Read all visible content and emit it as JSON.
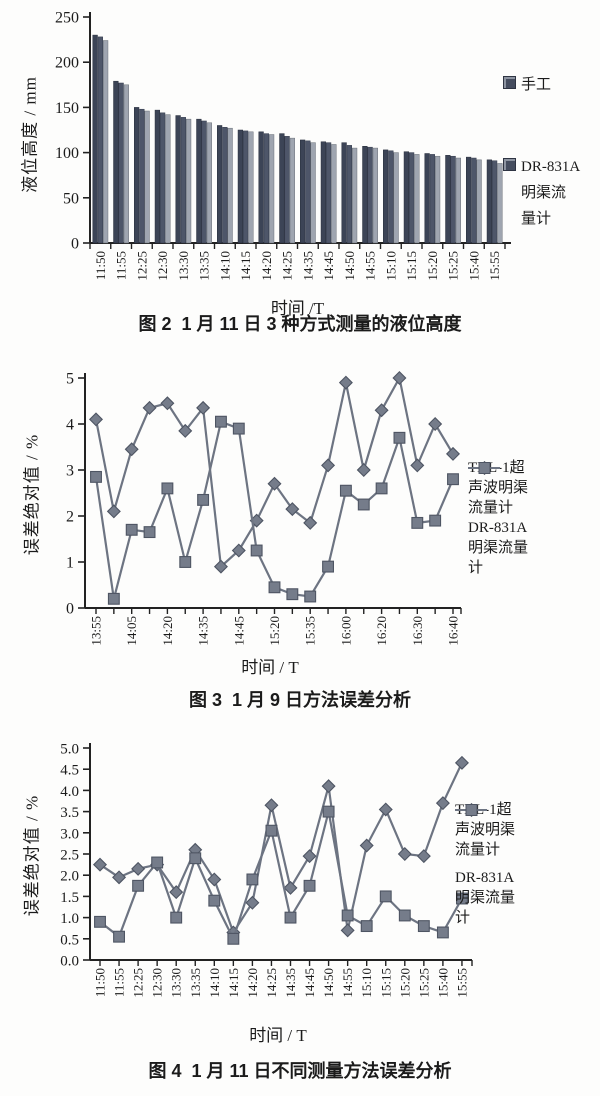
{
  "colors": {
    "axis": "#222222",
    "text": "#1b1b1b",
    "bar_series": [
      "#3c4456",
      "#4e5669",
      "#9fa5b0"
    ],
    "bar_stroke": [
      "#262c3a",
      "#343b4c",
      "#6a7078"
    ],
    "line": "#6d7482",
    "marker_fill": "#757c8a",
    "marker_stroke": "#4e5563"
  },
  "chart_data": [
    {
      "id": "fig2",
      "type": "bar",
      "caption": "图 2  1 月 11 日 3 种方式测量的液位高度",
      "xlabel": "时间 /T",
      "ylabel": "液位高度 / mm",
      "ylim": [
        0,
        250
      ],
      "ytick_values": [
        0,
        50,
        100,
        150,
        200,
        250
      ],
      "ytick_labels": [
        "0",
        "50",
        "100",
        "150",
        "200",
        "250"
      ],
      "grid": false,
      "legend_position": "right",
      "categories": [
        "11:50",
        "11:55",
        "12:25",
        "12:30",
        "13:30",
        "13:35",
        "14:10",
        "14:15",
        "14:20",
        "14:25",
        "14:35",
        "14:45",
        "14:50",
        "14:55",
        "15:10",
        "15:15",
        "15:20",
        "15:25",
        "15:40",
        "15:55"
      ],
      "series": [
        {
          "name": "手工",
          "values": [
            230,
            179,
            150,
            147,
            141,
            137,
            130,
            125,
            123,
            121,
            114,
            112,
            111,
            107,
            103,
            101,
            99,
            97,
            95,
            92
          ]
        },
        {
          "name": "",
          "values": [
            228,
            177,
            148,
            144,
            139,
            135,
            128,
            124,
            121,
            118,
            113,
            111,
            108,
            106,
            102,
            100,
            98,
            96,
            94,
            91
          ]
        },
        {
          "name": "DR-831A明渠流量计",
          "values": [
            224,
            175,
            146,
            142,
            137,
            133,
            127,
            123,
            120,
            116,
            111,
            109,
            105,
            105,
            100,
            98,
            96,
            94,
            92,
            88
          ]
        }
      ],
      "legend": [
        {
          "label": "手工",
          "marker": "square"
        },
        {
          "label": "DR-831A\n明渠流\n量计",
          "marker": "square"
        }
      ]
    },
    {
      "id": "fig3",
      "type": "line",
      "caption": "图 3  1 月 9 日方法误差分析",
      "xlabel": "时间 / T",
      "ylabel": "误差绝对值 / %",
      "ylim": [
        0,
        5
      ],
      "ytick_values": [
        0,
        1,
        2,
        3,
        4,
        5
      ],
      "ytick_labels": [
        "0",
        "1",
        "2",
        "3",
        "4",
        "5"
      ],
      "grid": false,
      "legend_position": "right",
      "x_labels": [
        "13:55",
        "",
        "14:05",
        "",
        "14:20",
        "",
        "14:35",
        "",
        "14:45",
        "",
        "15:20",
        "",
        "15:35",
        "",
        "16:00",
        "",
        "16:20",
        "",
        "16:30",
        "",
        "16:40"
      ],
      "series": [
        {
          "name": "TKL-1超声波明渠流量计",
          "marker": "diamond",
          "values": [
            4.1,
            2.1,
            3.45,
            4.35,
            4.45,
            3.85,
            4.35,
            0.9,
            1.25,
            1.9,
            2.7,
            2.15,
            1.85,
            3.1,
            4.9,
            3.0,
            4.3,
            5.0,
            3.1,
            4.0,
            3.35
          ]
        },
        {
          "name": "DR-831A明渠流量计",
          "marker": "square",
          "values": [
            2.85,
            0.2,
            1.7,
            1.65,
            2.6,
            1.0,
            2.35,
            4.05,
            3.9,
            1.25,
            0.45,
            0.3,
            0.25,
            0.9,
            2.55,
            2.25,
            2.6,
            3.7,
            1.85,
            1.9,
            2.8
          ]
        }
      ],
      "legend": [
        {
          "label": "TKL-1超\n声波明渠\n流量计",
          "marker": "diamond"
        },
        {
          "label": "DR-831A\n明渠流量\n计",
          "marker": "square"
        }
      ]
    },
    {
      "id": "fig4",
      "type": "line",
      "caption": "图 4  1 月 11 日不同测量方法误差分析",
      "xlabel": "时间 / T",
      "ylabel": "误差绝对值 / %",
      "ylim": [
        0,
        5
      ],
      "ytick_values": [
        0,
        0.5,
        1,
        1.5,
        2,
        2.5,
        3,
        3.5,
        4,
        4.5,
        5
      ],
      "ytick_labels": [
        "0.0",
        "0.5",
        "1.0",
        "1.5",
        "2.0",
        "2.5",
        "3.0",
        "3.5",
        "4.0",
        "4.5",
        "5.0"
      ],
      "grid": false,
      "legend_position": "right",
      "x_labels": [
        "11:50",
        "11:55",
        "12:25",
        "12:30",
        "13:30",
        "13:35",
        "14:10",
        "14:15",
        "14:20",
        "14:25",
        "14:35",
        "14:45",
        "14:50",
        "14:55",
        "15:10",
        "15:15",
        "15:20",
        "15:25",
        "15:40",
        "15:55"
      ],
      "series": [
        {
          "name": "TKL-1超声波明渠流量计",
          "marker": "diamond",
          "values": [
            2.25,
            1.95,
            2.15,
            2.25,
            1.6,
            2.6,
            1.9,
            0.65,
            1.35,
            3.65,
            1.7,
            2.45,
            4.1,
            0.7,
            2.7,
            3.55,
            2.5,
            2.45,
            3.7,
            4.65
          ]
        },
        {
          "name": "DR-831A明渠流量计",
          "marker": "square",
          "values": [
            0.9,
            0.55,
            1.75,
            2.3,
            1.0,
            2.4,
            1.4,
            0.5,
            1.9,
            3.05,
            1.0,
            1.75,
            3.5,
            1.05,
            0.8,
            1.5,
            1.05,
            0.8,
            0.65,
            1.45
          ]
        }
      ],
      "legend": [
        {
          "label": "TKL-1超\n声波明渠\n流量计",
          "marker": "diamond"
        },
        {
          "label": "DR-831A\n明渠流量\n计",
          "marker": "square"
        }
      ]
    }
  ]
}
